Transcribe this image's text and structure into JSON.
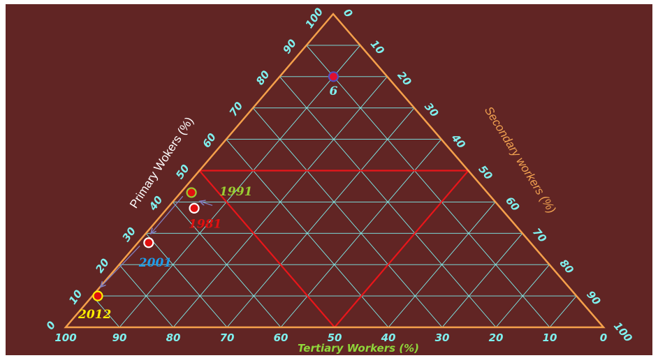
{
  "chart_data": {
    "type": "scatter",
    "subtype": "ternary",
    "axes": {
      "primary": {
        "label": "Primary Wokers (%)",
        "color": "#ffffff",
        "ticks": [
          "0",
          "10",
          "20",
          "30",
          "40",
          "50",
          "60",
          "70",
          "80",
          "90",
          "100"
        ]
      },
      "secondary": {
        "label": "Secondary workers (%)",
        "color": "#f0a050",
        "ticks": [
          "0",
          "10",
          "20",
          "30",
          "40",
          "50",
          "60",
          "70",
          "80",
          "90",
          "100"
        ]
      },
      "tertiary": {
        "label": "Tertiary Workers (%)",
        "color": "#8fd63a",
        "ticks": [
          "100",
          "90",
          "80",
          "70",
          "60",
          "50",
          "40",
          "30",
          "20",
          "10",
          "0"
        ]
      }
    },
    "grid": true,
    "grid_step": 10,
    "colors": {
      "frame": "#f5a04b",
      "grid": "#7ff0ee",
      "region": "#e8161a",
      "arrow": "#8080c0"
    },
    "region": {
      "description_label": "",
      "vertices": [
        {
          "primary": 50,
          "secondary": 0,
          "tertiary": 50
        },
        {
          "primary": 50,
          "secondary": 50,
          "tertiary": 0
        },
        {
          "primary": 0,
          "secondary": 50,
          "tertiary": 50
        }
      ]
    },
    "points": [
      {
        "label": "6",
        "primary": 80,
        "secondary": 10,
        "tertiary": 10,
        "fill": "#e01030",
        "stroke": "#5050c0",
        "label_color": "#7ff0ee"
      },
      {
        "label": "1991",
        "primary": 43,
        "secondary": 2,
        "tertiary": 55,
        "fill": "#e01010",
        "stroke": "#9acd32",
        "label_color": "#9acd32"
      },
      {
        "label": "1981",
        "primary": 38,
        "secondary": 5,
        "tertiary": 57,
        "fill": "#e01010",
        "stroke": "#ffffff",
        "label_color": "#e01010"
      },
      {
        "label": "2001",
        "primary": 27,
        "secondary": 2,
        "tertiary": 71,
        "fill": "#e01010",
        "stroke": "#ffffff",
        "label_color": "#1e9be8"
      },
      {
        "label": "2012",
        "primary": 10,
        "secondary": 1,
        "tertiary": 89,
        "fill": "#e01010",
        "stroke": "#ffee00",
        "label_color": "#ffee00"
      }
    ],
    "trajectory": [
      "1991",
      "2001",
      "2012"
    ]
  }
}
